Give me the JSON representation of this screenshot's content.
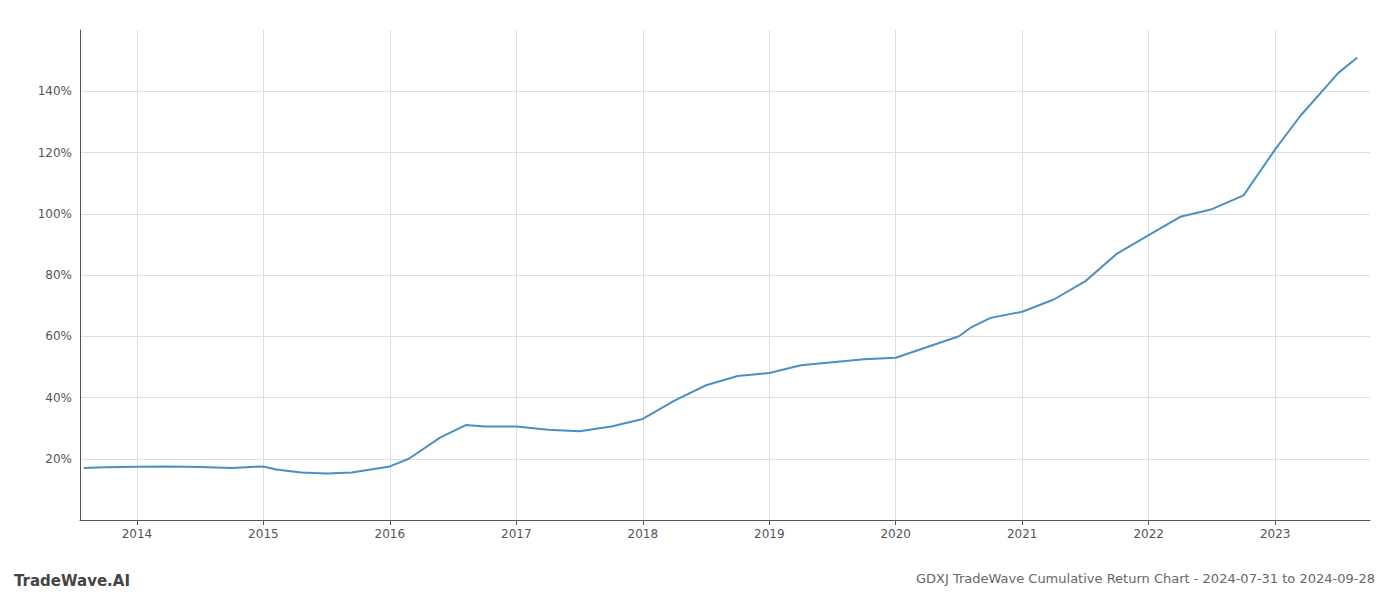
{
  "chart_data": {
    "type": "line",
    "title": "GDXJ TradeWave Cumulative Return Chart - 2024-07-31 to 2024-09-28",
    "annotations": [
      "TradeWave.AI"
    ],
    "color": "#4a90c4",
    "grid": true,
    "x": [
      2013.58,
      2013.75,
      2014.0,
      2014.25,
      2014.5,
      2014.75,
      2015.0,
      2015.1,
      2015.3,
      2015.5,
      2015.7,
      2015.85,
      2016.0,
      2016.15,
      2016.4,
      2016.6,
      2016.75,
      2017.0,
      2017.25,
      2017.5,
      2017.75,
      2018.0,
      2018.25,
      2018.5,
      2018.75,
      2019.0,
      2019.25,
      2019.5,
      2019.75,
      2020.0,
      2020.25,
      2020.5,
      2020.6,
      2020.75,
      2021.0,
      2021.25,
      2021.5,
      2021.75,
      2022.0,
      2022.25,
      2022.5,
      2022.75,
      2023.0,
      2023.2,
      2023.5,
      2023.65
    ],
    "values": [
      17.0,
      17.2,
      17.4,
      17.5,
      17.3,
      17.0,
      17.5,
      16.5,
      15.5,
      15.2,
      15.5,
      16.5,
      17.5,
      20.0,
      27.0,
      31.0,
      30.5,
      30.5,
      29.5,
      29.0,
      30.5,
      33.0,
      39.0,
      44.0,
      47.0,
      48.0,
      50.5,
      51.5,
      52.5,
      53.0,
      56.5,
      60.0,
      63.0,
      66.0,
      68.0,
      72.0,
      78.0,
      87.0,
      93.0,
      99.0,
      101.5,
      106.0,
      121.0,
      132.0,
      146.0,
      151.0
    ],
    "xlim": [
      2013.55,
      2023.75
    ],
    "xticks": [
      2014,
      2015,
      2016,
      2017,
      2018,
      2019,
      2020,
      2021,
      2022,
      2023
    ],
    "ylim": [
      0,
      160
    ],
    "yticks": [
      {
        "value": 20,
        "label": "20%"
      },
      {
        "value": 40,
        "label": "40%"
      },
      {
        "value": 60,
        "label": "60%"
      },
      {
        "value": 80,
        "label": "80%"
      },
      {
        "value": 100,
        "label": "100%"
      },
      {
        "value": 120,
        "label": "120%"
      },
      {
        "value": 140,
        "label": "140%"
      }
    ]
  }
}
